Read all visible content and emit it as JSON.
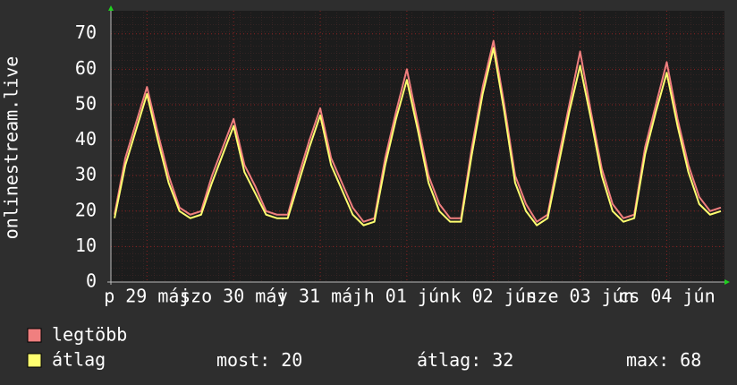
{
  "chart_data": {
    "type": "line",
    "ylabel": "onlinestream.live",
    "x": [
      3,
      6,
      9,
      12,
      15,
      18,
      21,
      24,
      27,
      30,
      33,
      36,
      39,
      42,
      45,
      48,
      51,
      54,
      57,
      60,
      63,
      66,
      69,
      72,
      75,
      78,
      81,
      84,
      87,
      90,
      93,
      96,
      99,
      102,
      105,
      108,
      111,
      114,
      117,
      120,
      123,
      126,
      129,
      132,
      135,
      138,
      141,
      144,
      147,
      150,
      153,
      156,
      159,
      162,
      165,
      168,
      171
    ],
    "xlim": [
      2,
      172
    ],
    "xticks": [
      {
        "value": 12,
        "label": "p 29 máj"
      },
      {
        "value": 36,
        "label": "szo 30 máj"
      },
      {
        "value": 60,
        "label": "v 31 máj"
      },
      {
        "value": 84,
        "label": "h 01 jún"
      },
      {
        "value": 108,
        "label": "k 02 jún"
      },
      {
        "value": 132,
        "label": "sze 03 jún"
      },
      {
        "value": 156,
        "label": "cs 04 jún"
      }
    ],
    "ylim": [
      0,
      76.5
    ],
    "yticks": [
      0,
      10,
      20,
      30,
      40,
      50,
      60,
      70
    ],
    "grid": true,
    "series": [
      {
        "name": "legtöbb",
        "color": "#f07f7f",
        "values": [
          19,
          35,
          45,
          55,
          42,
          30,
          21,
          19,
          20,
          30,
          38,
          46,
          33,
          27,
          20,
          19,
          19,
          30,
          40,
          49,
          35,
          28,
          21,
          17,
          18,
          35,
          48,
          60,
          45,
          30,
          22,
          18,
          18,
          38,
          55,
          68,
          50,
          30,
          22,
          17,
          19,
          35,
          50,
          65,
          48,
          32,
          22,
          18,
          19,
          38,
          50,
          62,
          46,
          33,
          24,
          20,
          21
        ]
      },
      {
        "name": "átlag",
        "color": "#ffff70",
        "values": [
          18,
          33,
          43,
          53,
          40,
          28,
          20,
          18,
          19,
          28,
          36,
          44,
          31,
          25,
          19,
          18,
          18,
          28,
          38,
          47,
          33,
          26,
          19,
          16,
          17,
          33,
          46,
          57,
          43,
          28,
          20,
          17,
          17,
          36,
          53,
          66,
          48,
          28,
          20,
          16,
          18,
          33,
          48,
          61,
          46,
          30,
          20,
          17,
          18,
          36,
          48,
          59,
          44,
          31,
          22,
          19,
          20
        ]
      }
    ],
    "stats": [
      {
        "label": "most:",
        "value": 20
      },
      {
        "label": "átlag:",
        "value": 32
      },
      {
        "label": "max:",
        "value": 68
      }
    ]
  }
}
